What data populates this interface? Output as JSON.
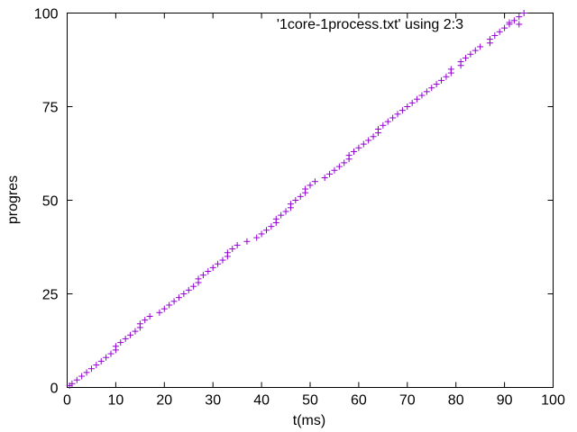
{
  "chart_data": {
    "type": "scatter",
    "title": "",
    "xlabel": "t(ms)",
    "ylabel": "progres",
    "xlim": [
      0,
      100
    ],
    "ylim": [
      0,
      100
    ],
    "x_ticks": [
      "0",
      "10",
      "20",
      "30",
      "40",
      "50",
      "60",
      "70",
      "80",
      "90",
      "100"
    ],
    "y_ticks": [
      "0",
      "25",
      "50",
      "75",
      "100"
    ],
    "grid": false,
    "legend_position": "top-right",
    "marker": "plus",
    "series": [
      {
        "name": "'1core-1process.txt' using 2:3",
        "color": "#9400d3",
        "points": [
          [
            0.5,
            0.5
          ],
          [
            1,
            1
          ],
          [
            2,
            2
          ],
          [
            3,
            3
          ],
          [
            4,
            4
          ],
          [
            5,
            5
          ],
          [
            6,
            6
          ],
          [
            7,
            7
          ],
          [
            8,
            8
          ],
          [
            9,
            9
          ],
          [
            10,
            10
          ],
          [
            10,
            11
          ],
          [
            11,
            12
          ],
          [
            12,
            13
          ],
          [
            13,
            14
          ],
          [
            14,
            15
          ],
          [
            15,
            16
          ],
          [
            15,
            17
          ],
          [
            16,
            18
          ],
          [
            17,
            19
          ],
          [
            19,
            20
          ],
          [
            20,
            21
          ],
          [
            21,
            22
          ],
          [
            22,
            23
          ],
          [
            23,
            24
          ],
          [
            24,
            25
          ],
          [
            25,
            26
          ],
          [
            26,
            27
          ],
          [
            27,
            28
          ],
          [
            27,
            29
          ],
          [
            28,
            30
          ],
          [
            29,
            31
          ],
          [
            30,
            32
          ],
          [
            31,
            33
          ],
          [
            32,
            34
          ],
          [
            33,
            35
          ],
          [
            33,
            36
          ],
          [
            34,
            37
          ],
          [
            35,
            38
          ],
          [
            37,
            39
          ],
          [
            39,
            40
          ],
          [
            40,
            41
          ],
          [
            41,
            42
          ],
          [
            42,
            43
          ],
          [
            43,
            44
          ],
          [
            43,
            45
          ],
          [
            44,
            46
          ],
          [
            45,
            47
          ],
          [
            46,
            48
          ],
          [
            46,
            49
          ],
          [
            47,
            50
          ],
          [
            48,
            51
          ],
          [
            49,
            52
          ],
          [
            49,
            53
          ],
          [
            50,
            54
          ],
          [
            51,
            55
          ],
          [
            53,
            56
          ],
          [
            54,
            57
          ],
          [
            55,
            58
          ],
          [
            56,
            59
          ],
          [
            57,
            60
          ],
          [
            58,
            61
          ],
          [
            58,
            62
          ],
          [
            59,
            63
          ],
          [
            60,
            64
          ],
          [
            61,
            65
          ],
          [
            62,
            66
          ],
          [
            63,
            67
          ],
          [
            64,
            68
          ],
          [
            64,
            69
          ],
          [
            65,
            70
          ],
          [
            66,
            71
          ],
          [
            67,
            72
          ],
          [
            68,
            73
          ],
          [
            69,
            74
          ],
          [
            70,
            75
          ],
          [
            71,
            76
          ],
          [
            72,
            77
          ],
          [
            73,
            78
          ],
          [
            74,
            79
          ],
          [
            75,
            80
          ],
          [
            76,
            81
          ],
          [
            77,
            82
          ],
          [
            78,
            83
          ],
          [
            79,
            84
          ],
          [
            79,
            85
          ],
          [
            81,
            86
          ],
          [
            81,
            87
          ],
          [
            82,
            88
          ],
          [
            83,
            89
          ],
          [
            84,
            90
          ],
          [
            85,
            91
          ],
          [
            87,
            92
          ],
          [
            87,
            93
          ],
          [
            88,
            94
          ],
          [
            89,
            95
          ],
          [
            90,
            96
          ],
          [
            91,
            97
          ],
          [
            92,
            98
          ],
          [
            93,
            97
          ],
          [
            93,
            99
          ],
          [
            94,
            100
          ]
        ]
      }
    ]
  }
}
